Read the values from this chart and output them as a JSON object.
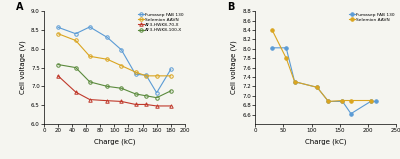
{
  "panel_A": {
    "series": [
      {
        "label": "Fumasep FAB 130",
        "color": "#5b9bd5",
        "marker": "o",
        "fillstyle": "none",
        "x": [
          20,
          45,
          65,
          90,
          110,
          130,
          145,
          160,
          180
        ],
        "y": [
          8.57,
          8.4,
          8.58,
          8.3,
          7.97,
          7.32,
          7.3,
          6.83,
          7.45
        ]
      },
      {
        "label": "Selemion AAVN",
        "color": "#daa520",
        "marker": "o",
        "fillstyle": "none",
        "x": [
          20,
          45,
          65,
          90,
          110,
          130,
          145,
          160,
          180
        ],
        "y": [
          8.4,
          8.22,
          7.8,
          7.72,
          7.55,
          7.38,
          7.28,
          7.28,
          7.28
        ]
      },
      {
        "label": "AF3-HWK8-70-X",
        "color": "#c0392b",
        "marker": "^",
        "fillstyle": "none",
        "x": [
          20,
          45,
          65,
          90,
          110,
          130,
          145,
          160,
          180
        ],
        "y": [
          7.28,
          6.85,
          6.65,
          6.62,
          6.6,
          6.52,
          6.52,
          6.48,
          6.48
        ]
      },
      {
        "label": "AF3-HWK8-100-X",
        "color": "#5a8a3c",
        "marker": "o",
        "fillstyle": "none",
        "x": [
          20,
          45,
          65,
          90,
          110,
          130,
          145,
          160,
          180
        ],
        "y": [
          7.58,
          7.5,
          7.12,
          7.0,
          6.95,
          6.8,
          6.75,
          6.7,
          6.88
        ]
      }
    ],
    "xlabel": "Charge (kC)",
    "ylabel": "Cell voltage (V)",
    "xlim": [
      0,
      200
    ],
    "ylim": [
      6.0,
      9.0
    ],
    "yticks": [
      6.0,
      6.5,
      7.0,
      7.5,
      8.0,
      8.5,
      9.0
    ],
    "xticks": [
      0,
      20,
      40,
      60,
      80,
      100,
      120,
      140,
      160,
      180,
      200
    ],
    "panel_label": "A"
  },
  "panel_B": {
    "series": [
      {
        "label": "Fumasep FAB 130",
        "color": "#5b9bd5",
        "marker": "o",
        "fillstyle": "full",
        "x": [
          30,
          55,
          70,
          110,
          130,
          155,
          170,
          205,
          215
        ],
        "y": [
          8.02,
          8.02,
          7.3,
          7.18,
          6.88,
          6.88,
          6.62,
          6.88,
          6.88
        ]
      },
      {
        "label": "Selemion AAVN",
        "color": "#daa520",
        "marker": "o",
        "fillstyle": "full",
        "x": [
          30,
          55,
          70,
          110,
          130,
          155,
          170,
          205
        ],
        "y": [
          8.4,
          7.8,
          7.3,
          7.18,
          6.88,
          6.9,
          6.9,
          6.9
        ]
      }
    ],
    "xlabel": "Charge (kC)",
    "ylabel": "Cell voltage (V)",
    "xlim": [
      0,
      250
    ],
    "ylim": [
      6.4,
      8.8
    ],
    "yticks": [
      6.6,
      6.8,
      7.0,
      7.2,
      7.4,
      7.6,
      7.8,
      8.0,
      8.2,
      8.4,
      8.6,
      8.8
    ],
    "xticks": [
      0,
      50,
      100,
      150,
      200,
      250
    ],
    "panel_label": "B"
  },
  "fig_bg": "#f5f5f0"
}
